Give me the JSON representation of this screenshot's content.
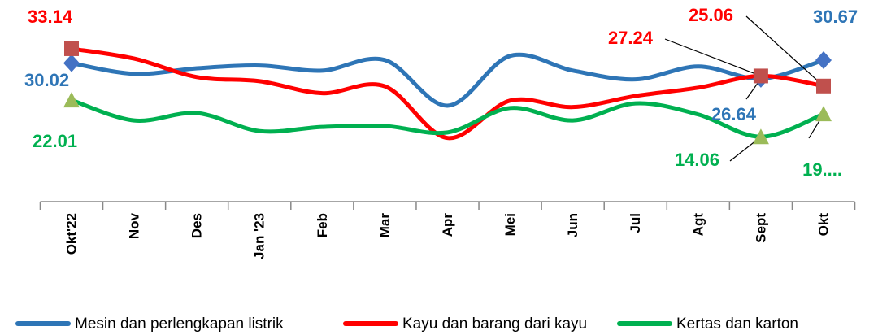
{
  "chart_data": {
    "type": "line",
    "categories": [
      "Okt'22",
      "Nov",
      "Des",
      "Jan '23",
      "Feb",
      "Mar",
      "Apr",
      "Mei",
      "Jun",
      "Jul",
      "Agt",
      "Sept",
      "Okt"
    ],
    "ylim": [
      0,
      43
    ],
    "series": [
      {
        "name": "Mesin dan perlengkapan listrik",
        "color": "#2e75b6",
        "marker": "diamond",
        "marker_color": "#4472c4",
        "values": [
          30.02,
          27.7,
          28.9,
          29.5,
          28.4,
          30.7,
          20.8,
          31.6,
          28.4,
          26.5,
          29.3,
          26.64,
          30.67
        ],
        "value_labels": [
          "30.02",
          null,
          null,
          null,
          null,
          null,
          null,
          null,
          null,
          null,
          null,
          "26.64",
          "30.67"
        ]
      },
      {
        "name": "Kayu dan barang dari kayu",
        "color": "#ff0000",
        "marker": "square",
        "marker_color": "#c0504d",
        "values": [
          33.14,
          31.0,
          27.0,
          26.1,
          23.5,
          25.0,
          13.8,
          21.9,
          20.5,
          22.9,
          24.7,
          27.24,
          25.06
        ],
        "value_labels": [
          "33.14",
          null,
          null,
          null,
          null,
          null,
          null,
          null,
          null,
          null,
          null,
          "27.24",
          "25.06"
        ]
      },
      {
        "name": "Kertas dan karton",
        "color": "#00b050",
        "marker": "triangle",
        "marker_color": "#9bbb59",
        "values": [
          22.01,
          17.6,
          19.2,
          15.3,
          16.2,
          16.4,
          15.0,
          20.3,
          17.6,
          21.3,
          18.9,
          14.06,
          19.0
        ],
        "value_labels": [
          "22.01",
          null,
          null,
          null,
          null,
          null,
          null,
          null,
          null,
          null,
          null,
          "14.06",
          "19...."
        ]
      }
    ],
    "legend": "bottom"
  }
}
